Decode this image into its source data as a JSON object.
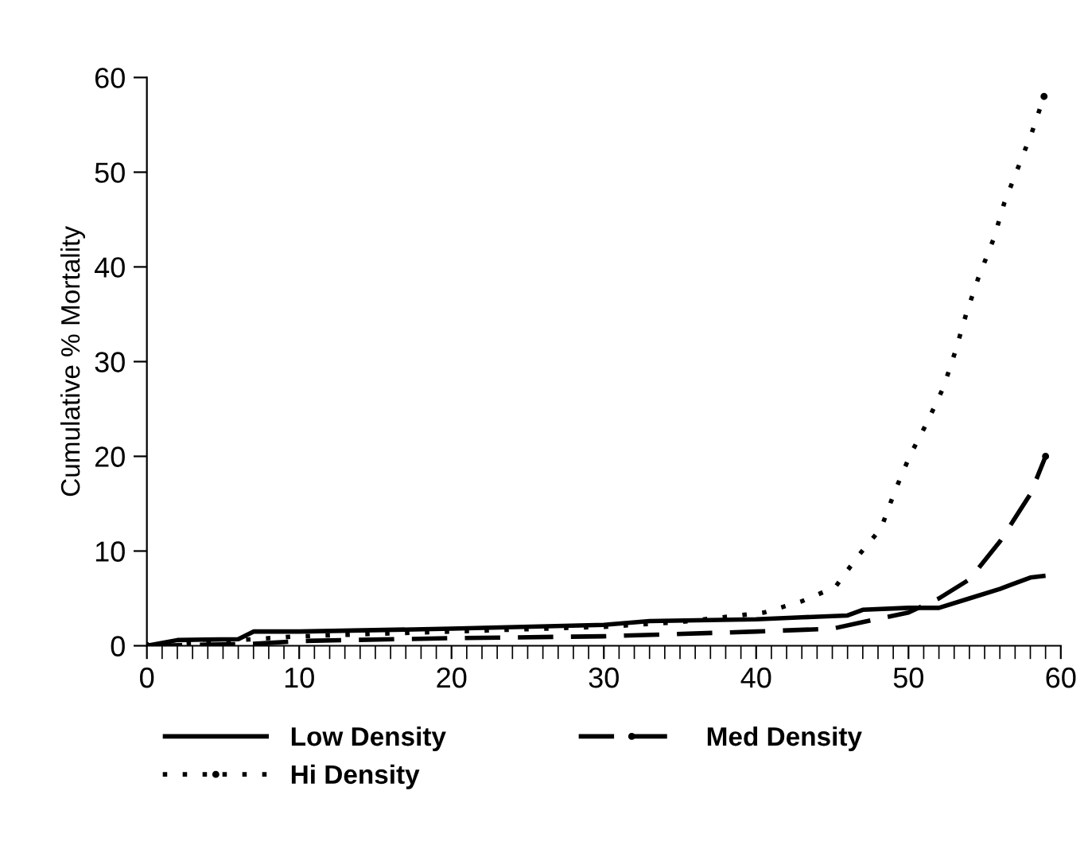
{
  "chart_data": {
    "type": "line",
    "ylabel": "Cumulative % Mortality",
    "xlim": [
      0,
      60
    ],
    "xticks": [
      0,
      10,
      20,
      30,
      40,
      50,
      60
    ],
    "ylim": [
      0,
      60
    ],
    "yticks": [
      0,
      10,
      20,
      30,
      40,
      50,
      60
    ],
    "grid": false,
    "legend": "bottom",
    "series": [
      {
        "name": "Low Density",
        "color": "#000000",
        "line_style": "solid",
        "x": [
          0,
          2,
          6,
          7,
          10,
          20,
          30,
          33,
          40,
          43,
          46,
          47,
          50,
          52,
          54,
          56,
          58,
          59
        ],
        "values": [
          0,
          0.6,
          0.7,
          1.5,
          1.5,
          1.8,
          2.2,
          2.6,
          2.8,
          3.0,
          3.2,
          3.8,
          4.0,
          4.0,
          5.0,
          6.0,
          7.2,
          7.4
        ]
      },
      {
        "name": "Med Density",
        "color": "#000000",
        "line_style": "dashed",
        "x": [
          0,
          7,
          10,
          20,
          30,
          40,
          45,
          47,
          50,
          52,
          54,
          56,
          58,
          59
        ],
        "values": [
          0,
          0.2,
          0.5,
          0.8,
          1.0,
          1.5,
          1.8,
          2.5,
          3.5,
          5.0,
          7.0,
          11,
          16,
          20
        ]
      },
      {
        "name": "Hi Density",
        "color": "#000000",
        "line_style": "dotted",
        "x": [
          0,
          5,
          10,
          20,
          30,
          35,
          40.5,
          43,
          45.2,
          46.7,
          48.2,
          49.1,
          50.1,
          51.2,
          52.3,
          53.1,
          53.8,
          54.6,
          55.6,
          56.3,
          57.2,
          58.1,
          58.9
        ],
        "values": [
          0,
          0.5,
          1,
          1.5,
          2,
          2.5,
          3.5,
          4.7,
          6.2,
          9.5,
          12.4,
          16.3,
          20.1,
          23.5,
          27.3,
          31.2,
          35.1,
          38.9,
          43,
          46.8,
          50.5,
          54.2,
          58
        ]
      }
    ]
  }
}
